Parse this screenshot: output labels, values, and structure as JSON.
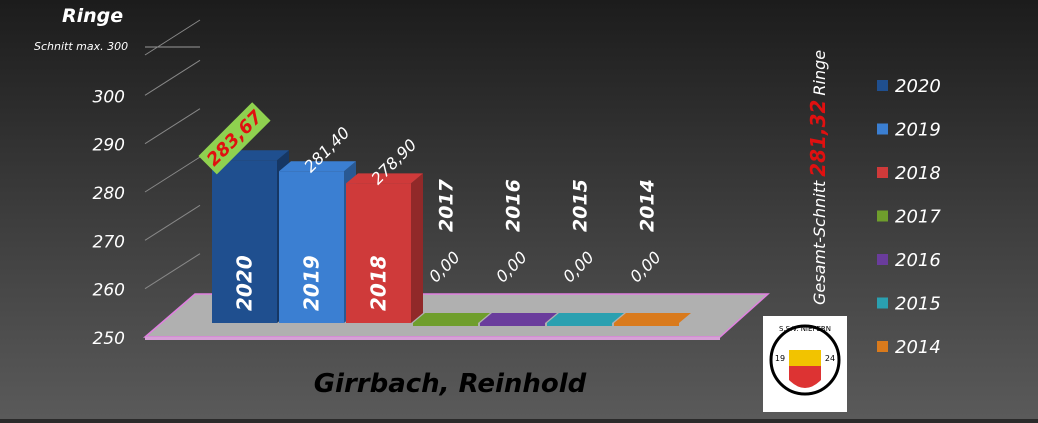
{
  "chart_data": {
    "type": "bar3d",
    "y_label": "Ringe",
    "y_sublabel": "Schnitt max. 300",
    "x_label": "Girrbach, Reinhold",
    "categories": [
      "2020",
      "2019",
      "2018",
      "2017",
      "2016",
      "2015",
      "2014"
    ],
    "values": [
      283.67,
      281.4,
      278.9,
      0,
      0,
      0,
      0
    ],
    "value_labels": [
      "283,67",
      "281,40",
      "278,90",
      "0,00",
      "0,00",
      "0,00",
      "0,00"
    ],
    "colors": [
      "#1f4f8f",
      "#3b7fd2",
      "#cf3a3a",
      "#6f9e2c",
      "#6a3c9c",
      "#2aa0b0",
      "#d97a1c"
    ],
    "ylim": [
      250,
      310
    ],
    "yticks": [
      250,
      260,
      270,
      280,
      290,
      300
    ],
    "average": {
      "text_before": "Gesamt-Schnitt",
      "value": 281.32,
      "label": "281,32",
      "text_after": "Ringe"
    },
    "logo": {
      "name": "S.S.V. NIEFERN",
      "year_left": "19",
      "year_right": "24"
    }
  }
}
